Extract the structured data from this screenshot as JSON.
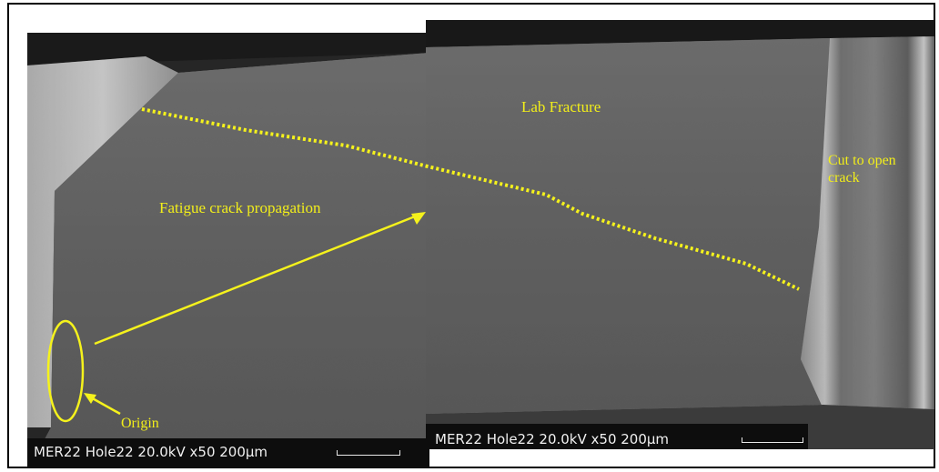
{
  "image": {
    "description_colors": {
      "annotation": "#f5f21c",
      "caption_bar": "#0d0d0d",
      "caption_text": "#f0f0f0"
    }
  },
  "annotations": {
    "lab_fracture": "Lab Fracture",
    "cut_to_open_crack": "Cut to open\ncrack",
    "fatigue_crack_propagation": "Fatigue crack propagation",
    "origin": "Origin"
  },
  "micrographs": [
    {
      "caption": "MER22 Hole22  20.0kV  x50   200µm"
    },
    {
      "caption": "MER22 Hole22  20.0kV  x50   200µm"
    }
  ]
}
